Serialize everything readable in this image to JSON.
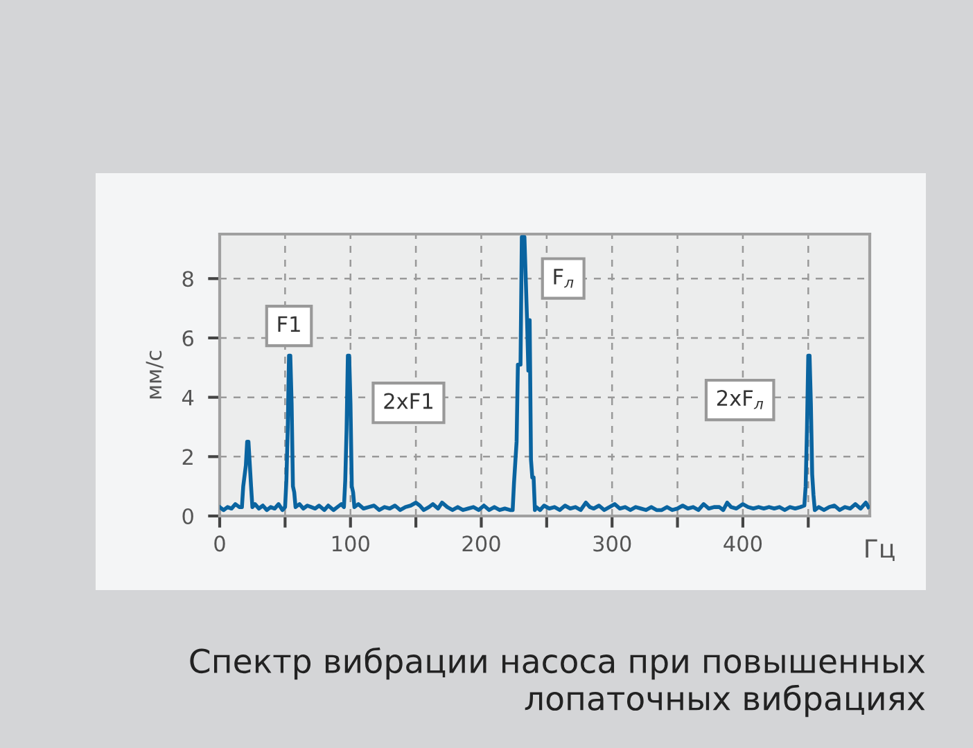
{
  "chart_data": {
    "type": "line",
    "title": "Спектр вибрации насоса при повышенных лопаточных вибрациях",
    "xlabel": "Гц",
    "ylabel": "мм/с",
    "x": [
      0,
      3,
      6,
      9,
      12,
      15,
      17,
      18,
      20,
      21,
      22,
      23,
      24,
      25,
      27,
      30,
      33,
      36,
      39,
      42,
      45,
      48,
      50,
      51,
      52,
      53,
      54,
      55,
      56,
      57,
      58,
      61,
      64,
      67,
      70,
      73,
      76,
      80,
      83,
      87,
      90,
      93,
      95,
      96,
      97,
      98,
      99,
      100,
      101,
      102,
      103,
      106,
      110,
      114,
      118,
      122,
      126,
      130,
      134,
      138,
      142,
      146,
      150,
      153,
      156,
      160,
      163,
      167,
      170,
      174,
      178,
      182,
      186,
      190,
      194,
      198,
      202,
      206,
      210,
      214,
      218,
      222,
      224,
      225,
      226,
      227,
      228,
      229,
      230,
      231,
      233,
      235,
      236,
      237,
      238,
      239,
      240,
      241,
      242,
      245,
      248,
      252,
      256,
      260,
      264,
      268,
      272,
      276,
      280,
      283,
      286,
      290,
      294,
      298,
      302,
      306,
      310,
      314,
      318,
      322,
      326,
      330,
      334,
      338,
      342,
      346,
      350,
      354,
      358,
      362,
      366,
      370,
      374,
      378,
      382,
      385,
      388,
      391,
      395,
      400,
      404,
      408,
      412,
      416,
      420,
      424,
      428,
      432,
      436,
      440,
      444,
      447,
      448,
      449,
      450,
      451,
      452,
      453,
      454,
      455,
      458,
      462,
      466,
      470,
      474,
      478,
      482,
      486,
      490,
      494,
      496
    ],
    "series": [
      {
        "color": "#0a64a0",
        "values": [
          0.3,
          0.2,
          0.3,
          0.25,
          0.4,
          0.3,
          0.3,
          1.0,
          1.7,
          2.5,
          2.5,
          1.75,
          1.0,
          0.3,
          0.4,
          0.25,
          0.35,
          0.2,
          0.3,
          0.25,
          0.4,
          0.2,
          0.3,
          1.2,
          2.9,
          5.4,
          5.4,
          3.8,
          1.0,
          0.8,
          0.3,
          0.4,
          0.25,
          0.35,
          0.3,
          0.25,
          0.35,
          0.2,
          0.35,
          0.2,
          0.3,
          0.4,
          0.3,
          1.2,
          2.9,
          5.4,
          5.4,
          3.8,
          1.0,
          0.8,
          0.3,
          0.4,
          0.25,
          0.3,
          0.35,
          0.2,
          0.3,
          0.25,
          0.35,
          0.2,
          0.3,
          0.35,
          0.45,
          0.35,
          0.2,
          0.3,
          0.4,
          0.25,
          0.45,
          0.3,
          0.2,
          0.3,
          0.2,
          0.25,
          0.3,
          0.2,
          0.35,
          0.2,
          0.3,
          0.2,
          0.25,
          0.2,
          0.2,
          1.1,
          1.8,
          2.5,
          5.1,
          5.1,
          5.1,
          9.4,
          9.4,
          6.6,
          4.9,
          6.6,
          1.9,
          1.3,
          1.3,
          0.2,
          0.3,
          0.2,
          0.35,
          0.25,
          0.3,
          0.2,
          0.35,
          0.25,
          0.3,
          0.2,
          0.45,
          0.3,
          0.25,
          0.35,
          0.2,
          0.3,
          0.4,
          0.25,
          0.3,
          0.2,
          0.3,
          0.25,
          0.2,
          0.3,
          0.2,
          0.2,
          0.3,
          0.2,
          0.25,
          0.35,
          0.25,
          0.3,
          0.2,
          0.4,
          0.25,
          0.3,
          0.3,
          0.2,
          0.45,
          0.3,
          0.25,
          0.4,
          0.3,
          0.25,
          0.3,
          0.25,
          0.3,
          0.25,
          0.3,
          0.2,
          0.3,
          0.25,
          0.3,
          0.35,
          1.0,
          2.9,
          5.4,
          5.4,
          3.8,
          1.4,
          0.7,
          0.2,
          0.3,
          0.2,
          0.3,
          0.35,
          0.2,
          0.3,
          0.25,
          0.4,
          0.25,
          0.45,
          0.3
        ]
      }
    ],
    "xlim": [
      0,
      497
    ],
    "ylim": [
      0,
      9.5
    ],
    "xticks": [
      0,
      {
        "value": 50,
        "label": null
      },
      100,
      {
        "value": 150,
        "label": null
      },
      200,
      {
        "value": 250,
        "label": null
      },
      300,
      {
        "value": 350,
        "label": null
      },
      400,
      {
        "value": 450,
        "label": null
      }
    ],
    "yticks": [
      0,
      2,
      4,
      6,
      8
    ],
    "grid": true,
    "line_style": "solid",
    "annotations": [
      {
        "text": "F1",
        "x": 53,
        "y": 5.4
      },
      {
        "text": "2xF1",
        "x": 98,
        "y": 5.4
      },
      {
        "text": "F$_{л}$",
        "x": 231,
        "y": 9.4
      },
      {
        "text": "2xF$_{л}$",
        "x": 450,
        "y": 5.4
      }
    ]
  }
}
